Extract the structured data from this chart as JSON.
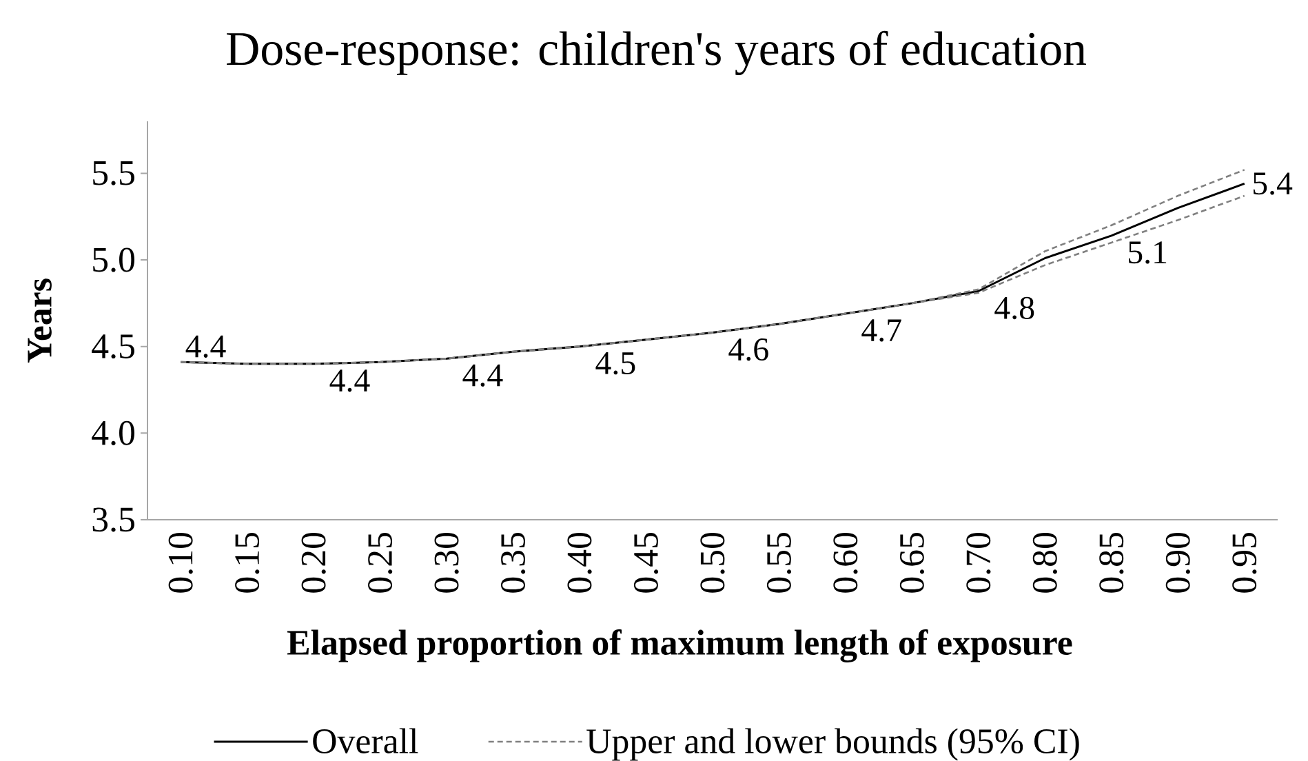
{
  "chart_data": {
    "type": "line",
    "title": "Dose-response: children's years of education",
    "xlabel": "Elapsed proportion of maximum length of exposure",
    "ylabel": "Years",
    "categories": [
      "0.10",
      "0.15",
      "0.20",
      "0.25",
      "0.30",
      "0.35",
      "0.40",
      "0.45",
      "0.50",
      "0.55",
      "0.60",
      "0.65",
      "0.70",
      "0.80",
      "0.85",
      "0.90",
      "0.95"
    ],
    "series": [
      {
        "name": "Overall",
        "color": "#000000",
        "line_style": "solid",
        "values": [
          4.41,
          4.4,
          4.4,
          4.41,
          4.43,
          4.47,
          4.5,
          4.54,
          4.58,
          4.63,
          4.69,
          4.75,
          4.82,
          5.01,
          5.14,
          5.3,
          5.44
        ],
        "value_labels": [
          "4.4",
          null,
          "4.4",
          null,
          "4.4",
          null,
          "4.5",
          null,
          "4.6",
          null,
          "4.7",
          null,
          "4.8",
          null,
          "5.1",
          null,
          "5.4"
        ]
      },
      {
        "name": "Upper and lower bounds (95% CI)",
        "color": "#808080",
        "line_style": "dashed",
        "values": [
          4.41,
          4.4,
          4.4,
          4.41,
          4.43,
          4.47,
          4.5,
          4.54,
          4.58,
          4.63,
          4.69,
          4.75,
          4.83,
          5.05,
          5.2,
          5.37,
          5.52
        ]
      },
      {
        "color": "#808080",
        "line_style": "dashed",
        "values": [
          4.41,
          4.4,
          4.4,
          4.41,
          4.43,
          4.47,
          4.5,
          4.54,
          4.58,
          4.63,
          4.69,
          4.75,
          4.81,
          4.97,
          5.1,
          5.23,
          5.37
        ]
      }
    ],
    "ylim": [
      3.5,
      5.8
    ],
    "yticks": [
      {
        "value": 3.5,
        "label": "3.5"
      },
      {
        "value": 4.0,
        "label": "4.0"
      },
      {
        "value": 4.5,
        "label": "4.5"
      },
      {
        "value": 5.0,
        "label": "5.0"
      },
      {
        "value": 5.5,
        "label": "5.5"
      }
    ],
    "legend": "bottom"
  }
}
